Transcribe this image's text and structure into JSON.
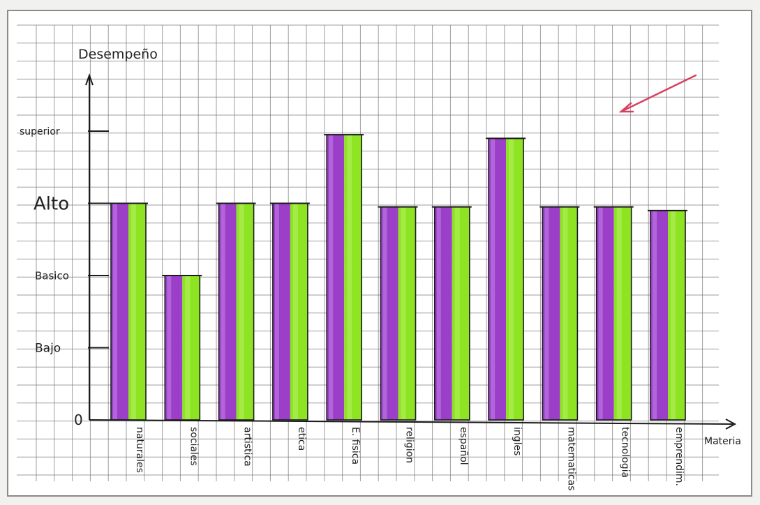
{
  "chart_data": {
    "type": "bar",
    "ylabel": "Desempeño",
    "xlabel": "Materia",
    "y_levels": [
      "0",
      "Bajo",
      "Basico",
      "Alto",
      "superior"
    ],
    "ylim": [
      0,
      4
    ],
    "categories": [
      "naturales",
      "sociales",
      "artistica",
      "etica",
      "E. fisica",
      "religion",
      "español",
      "ingles",
      "matematicas",
      "tecnologia",
      "emprendim."
    ],
    "values": [
      3,
      2,
      3,
      3,
      3.95,
      2.95,
      2.95,
      3.9,
      2.95,
      2.95,
      2.9
    ],
    "grid": true,
    "colors": {
      "purple": "#9b3fc8",
      "purple_light": "#c27ee6",
      "green": "#8ee322",
      "green_light": "#b3f060",
      "ink": "#1b1b1b",
      "grid": "#7d7d7d",
      "arrow": "#d8405f"
    }
  }
}
